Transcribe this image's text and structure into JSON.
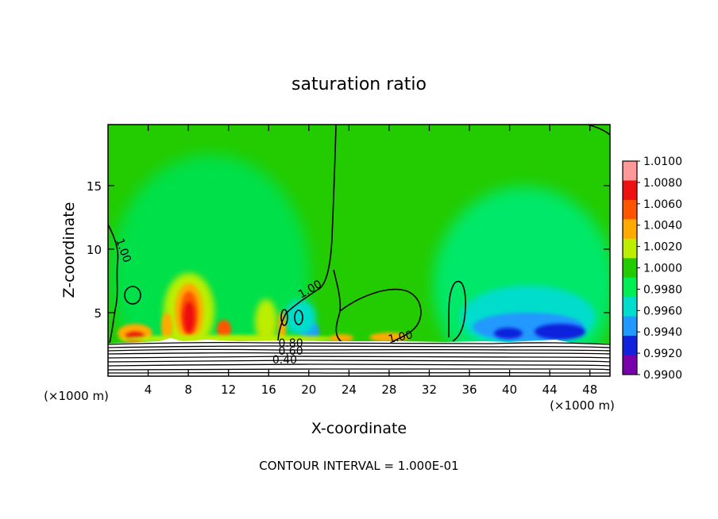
{
  "chart_data": {
    "type": "heatmap",
    "title": "saturation ratio",
    "xlabel": "X-coordinate",
    "ylabel": "Z-coordinate",
    "x_unit_left": "(×1000 m)",
    "x_unit_right": "(×1000 m)",
    "xlim": [
      0,
      50
    ],
    "ylim": [
      0,
      19.8
    ],
    "x_ticks": [
      4,
      8,
      12,
      16,
      20,
      24,
      28,
      32,
      36,
      40,
      44,
      48
    ],
    "x_tick_labels": [
      "4",
      "8",
      "12",
      "16",
      "20",
      "24",
      "28",
      "32",
      "36",
      "40",
      "44",
      "48"
    ],
    "y_ticks": [
      5,
      10,
      15
    ],
    "y_tick_labels": [
      "5",
      "10",
      "15"
    ],
    "colorbar": {
      "labels": [
        "1.0100",
        "1.0080",
        "1.0060",
        "1.0040",
        "1.0020",
        "1.0000",
        "0.9980",
        "0.9960",
        "0.9940",
        "0.9920",
        "0.9900"
      ],
      "values": [
        1.01,
        1.008,
        1.006,
        1.004,
        1.002,
        1.0,
        0.998,
        0.996,
        0.994,
        0.992,
        0.99
      ],
      "colors": [
        "#ff9999",
        "#ee1111",
        "#ff5500",
        "#ffaa00",
        "#bbee00",
        "#22cc00",
        "#00ee55",
        "#00ddcc",
        "#2299ff",
        "#1122dd",
        "#7700aa"
      ]
    },
    "background_value": 1.0,
    "ground_top_z": 2.8,
    "contour_labels": [
      {
        "text": "1.00",
        "x": 1.2,
        "z": 9.8,
        "rotate": 70
      },
      {
        "text": "1.00",
        "x": 20.3,
        "z": 6.6,
        "rotate": -30
      },
      {
        "text": "1.00",
        "x": 29.2,
        "z": 2.8,
        "rotate": -12
      },
      {
        "text": "0.80",
        "x": 18.2,
        "z": 2.3,
        "rotate": 0
      },
      {
        "text": "0.60",
        "x": 18.2,
        "z": 1.7,
        "rotate": 0
      },
      {
        "text": "0.40",
        "x": 17.6,
        "z": 1.0,
        "rotate": 0
      }
    ],
    "footer": "CONTOUR INTERVAL = 1.000E-01"
  }
}
